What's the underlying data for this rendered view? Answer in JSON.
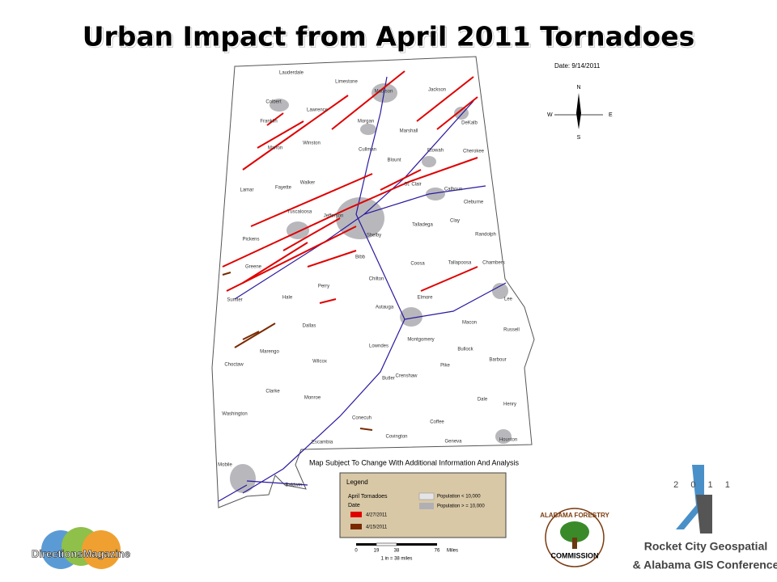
{
  "header": {
    "title": "Urban Impact from April 2011 Tornadoes"
  },
  "map": {
    "date": "Date: 9/14/2011",
    "compass": {
      "north": "N",
      "south": "S",
      "east": "E",
      "west": "W"
    },
    "note": "Map Subject To Change With Additional Information And Analysis",
    "counties": [
      "Lauderdale",
      "Limestone",
      "Madison",
      "Jackson",
      "Colbert",
      "Lawrence",
      "Morgan",
      "DeKalb",
      "Franklin",
      "Marshall",
      "Winston",
      "Marion",
      "Cullman",
      "Etowah",
      "Cherokee",
      "Blount",
      "Lamar",
      "Fayette",
      "Walker",
      "St. Clair",
      "Calhoun",
      "Tuscaloosa",
      "Jefferson",
      "Talladega",
      "Cleburne",
      "Clay",
      "Randolph",
      "Shelby",
      "Pickens",
      "Bibb",
      "Coosa",
      "Tallapoosa",
      "Chambers",
      "Greene",
      "Chilton",
      "Perry",
      "Hale",
      "Elmore",
      "Sumter",
      "Lee",
      "Autauga",
      "Macon",
      "Dallas",
      "Russell",
      "Marengo",
      "Lowndes",
      "Montgomery",
      "Bullock",
      "Barbour",
      "Wilcox",
      "Choctaw",
      "Pike",
      "Butler",
      "Crenshaw",
      "Clarke",
      "Monroe",
      "Dale",
      "Henry",
      "Washington",
      "Conecuh",
      "Coffee",
      "Covington",
      "Houston",
      "Escambia",
      "Geneva",
      "Mobile",
      "Baldwin"
    ],
    "legend": {
      "title": "Legend",
      "layer": "April Tornadoes",
      "field": "Date",
      "items": [
        "4/27/2011",
        "4/15/2011"
      ],
      "population": [
        "Population < 10,000",
        "Population > = 10,000"
      ]
    },
    "scale": {
      "ticks": [
        "0",
        "19",
        "38",
        "76"
      ],
      "unit": "Miles",
      "ratio": "1 in = 38 miles"
    }
  },
  "logos": {
    "directions": "DirectionsMagazine",
    "forestry_top": "ALABAMA FORESTRY",
    "forestry_bottom": "COMMISSION",
    "year": "2 0 1 1",
    "conference_1": "Rocket City Geospatial",
    "conference_2": "& Alabama GIS Conference"
  }
}
